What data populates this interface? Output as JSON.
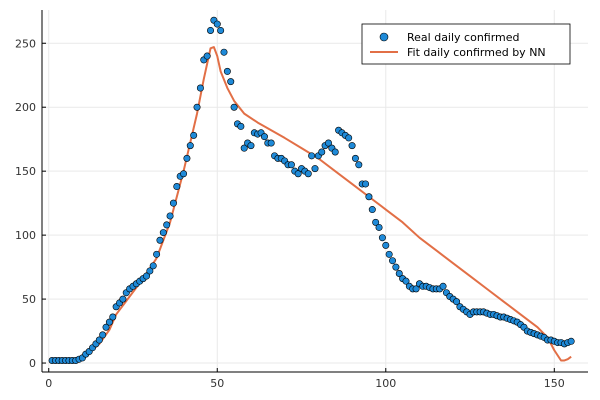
{
  "chart_data": {
    "type": "scatter",
    "title": "",
    "xlabel": "",
    "ylabel": "",
    "xlim": [
      -2,
      160
    ],
    "ylim": [
      -7,
      276
    ],
    "x_ticks": [
      0,
      50,
      100,
      150
    ],
    "y_ticks": [
      0,
      50,
      100,
      150,
      200,
      250
    ],
    "grid": true,
    "legend_position": "top-right",
    "series": [
      {
        "name": "Real daily confirmed",
        "kind": "scatter",
        "color": "#1f8ad8",
        "x": [
          1,
          2,
          3,
          4,
          5,
          6,
          7,
          8,
          9,
          10,
          11,
          12,
          13,
          14,
          15,
          16,
          17,
          18,
          19,
          20,
          21,
          22,
          23,
          24,
          25,
          26,
          27,
          28,
          29,
          30,
          31,
          32,
          33,
          34,
          35,
          36,
          37,
          38,
          39,
          40,
          41,
          42,
          43,
          44,
          45,
          46,
          47,
          48,
          49,
          50,
          51,
          52,
          53,
          54,
          55,
          56,
          57,
          58,
          59,
          60,
          61,
          62,
          63,
          64,
          65,
          66,
          67,
          68,
          69,
          70,
          71,
          72,
          73,
          74,
          75,
          76,
          77,
          78,
          79,
          80,
          81,
          82,
          83,
          84,
          85,
          86,
          87,
          88,
          89,
          90,
          91,
          92,
          93,
          94,
          95,
          96,
          97,
          98,
          99,
          100,
          101,
          102,
          103,
          104,
          105,
          106,
          107,
          108,
          109,
          110,
          111,
          112,
          113,
          114,
          115,
          116,
          117,
          118,
          119,
          120,
          121,
          122,
          123,
          124,
          125,
          126,
          127,
          128,
          129,
          130,
          131,
          132,
          133,
          134,
          135,
          136,
          137,
          138,
          139,
          140,
          141,
          142,
          143,
          144,
          145,
          146,
          147,
          148,
          149,
          150,
          151,
          152,
          153,
          154,
          155
        ],
        "y": [
          2,
          2,
          2,
          2,
          2,
          2,
          2,
          2,
          3,
          4,
          7,
          9,
          12,
          15,
          18,
          22,
          28,
          32,
          36,
          44,
          47,
          50,
          55,
          58,
          60,
          62,
          64,
          66,
          68,
          72,
          76,
          85,
          96,
          102,
          108,
          115,
          125,
          138,
          146,
          148,
          160,
          170,
          178,
          200,
          215,
          237,
          240,
          260,
          268,
          265,
          260,
          243,
          228,
          220,
          200,
          187,
          185,
          168,
          172,
          170,
          180,
          179,
          180,
          177,
          172,
          172,
          162,
          160,
          160,
          158,
          155,
          155,
          150,
          148,
          152,
          150,
          148,
          162,
          152,
          162,
          165,
          170,
          172,
          168,
          165,
          182,
          180,
          178,
          176,
          170,
          160,
          155,
          140,
          140,
          130,
          120,
          110,
          106,
          98,
          92,
          85,
          80,
          75,
          70,
          66,
          64,
          60,
          58,
          58,
          62,
          60,
          60,
          59,
          58,
          58,
          58,
          60,
          55,
          52,
          50,
          48,
          44,
          42,
          40,
          38,
          40,
          40,
          40,
          40,
          39,
          38,
          38,
          37,
          36,
          36,
          35,
          34,
          33,
          32,
          30,
          28,
          25,
          24,
          23,
          22,
          21,
          20,
          18,
          18,
          17,
          16,
          16,
          15,
          16,
          17
        ]
      },
      {
        "name": "Fit daily confirmed by NN",
        "kind": "line",
        "color": "#e26f46",
        "x": [
          1,
          4,
          8,
          10,
          12,
          15,
          18,
          20,
          24,
          28,
          32,
          36,
          40,
          44,
          46,
          48,
          49,
          50,
          51,
          53,
          55,
          58,
          62,
          66,
          70,
          75,
          80,
          85,
          90,
          95,
          100,
          105,
          110,
          115,
          120,
          125,
          130,
          135,
          140,
          145,
          148,
          150,
          152,
          153,
          154,
          155
        ],
        "y": [
          2,
          2,
          3,
          5,
          8,
          15,
          26,
          38,
          52,
          66,
          82,
          110,
          150,
          195,
          222,
          246,
          247,
          240,
          228,
          215,
          205,
          195,
          188,
          182,
          176,
          168,
          160,
          150,
          140,
          130,
          120,
          110,
          98,
          88,
          78,
          68,
          58,
          48,
          38,
          28,
          20,
          10,
          2,
          2,
          3,
          5
        ]
      }
    ]
  }
}
